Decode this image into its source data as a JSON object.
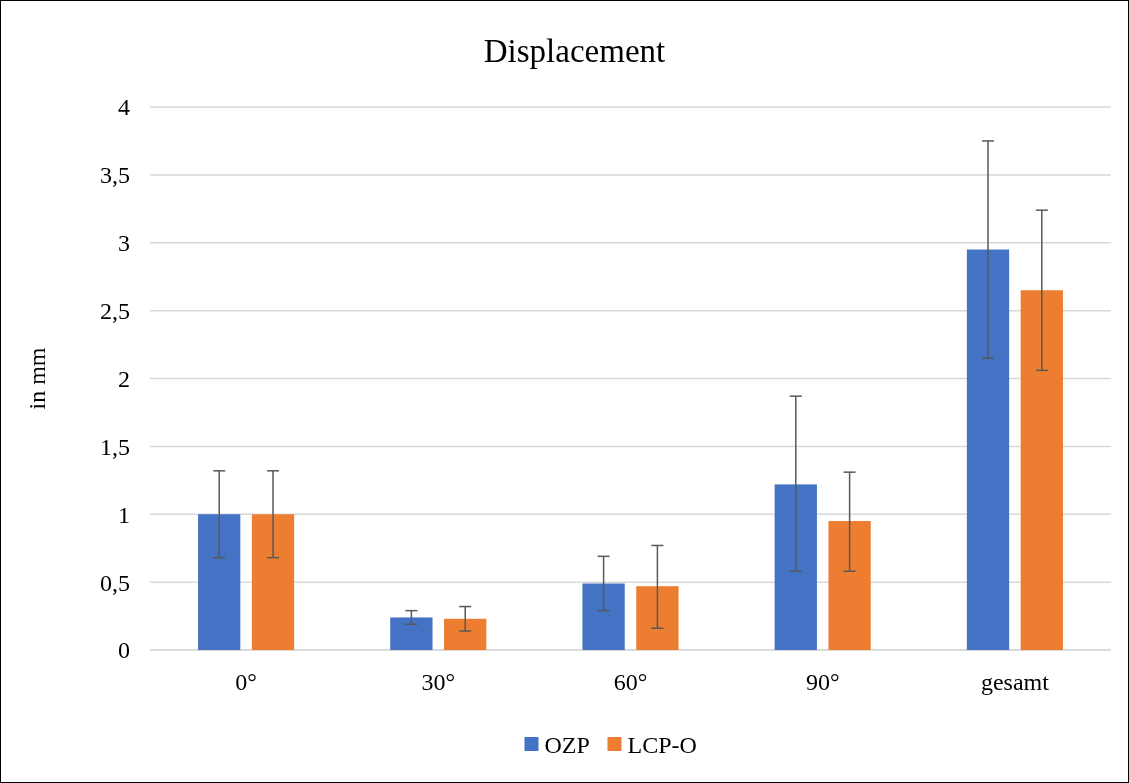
{
  "chart_data": {
    "type": "bar",
    "title": "Displacement",
    "ylabel": "in mm",
    "categories": [
      "0°",
      "30°",
      "60°",
      "90°",
      "gesamt"
    ],
    "series": [
      {
        "name": "OZP",
        "color": "#4472c4",
        "values": [
          1.0,
          0.24,
          0.49,
          1.22,
          2.95
        ],
        "errors": [
          [
            0.68,
            1.32
          ],
          [
            0.19,
            0.29
          ],
          [
            0.29,
            0.69
          ],
          [
            0.58,
            1.87
          ],
          [
            2.15,
            3.75
          ]
        ]
      },
      {
        "name": "LCP-O",
        "color": "#ed7d31",
        "values": [
          1.0,
          0.23,
          0.47,
          0.95,
          2.65
        ],
        "errors": [
          [
            0.68,
            1.32
          ],
          [
            0.14,
            0.32
          ],
          [
            0.16,
            0.77
          ],
          [
            0.58,
            1.31
          ],
          [
            2.06,
            3.24
          ]
        ]
      }
    ],
    "ylim": [
      0,
      4
    ],
    "yticks": [
      0,
      {
        "value": 0.5,
        "label": "0,5"
      },
      1,
      {
        "value": 1.5,
        "label": "1,5"
      },
      2,
      {
        "value": 2.5,
        "label": "2,5"
      },
      3,
      {
        "value": 3.5,
        "label": "3,5"
      },
      4
    ],
    "grid": "y",
    "legend": "bottom"
  }
}
